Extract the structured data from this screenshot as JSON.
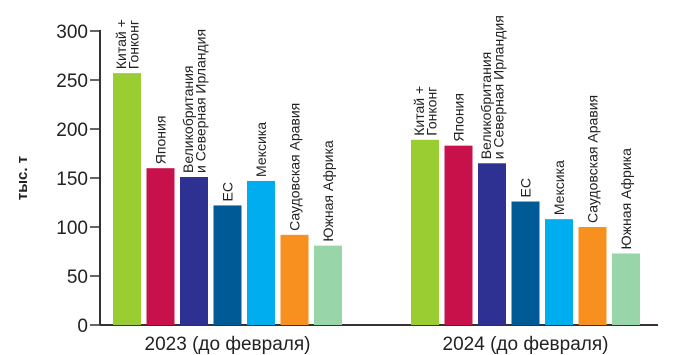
{
  "chart_data": {
    "type": "bar",
    "ylabel": "тыс. т",
    "ylim": [
      0,
      300
    ],
    "yticks": [
      0,
      50,
      100,
      150,
      200,
      250,
      300
    ],
    "grid": false,
    "categories": [
      "2023 (до февраля)",
      "2024 (до февраля)"
    ],
    "series": [
      {
        "name": "Китай + Гонконг",
        "label_lines": [
          "Китай +",
          "Гонконг"
        ],
        "color": "#9ACD32",
        "values": [
          257,
          189
        ]
      },
      {
        "name": "Япония",
        "label_lines": [
          "Япония"
        ],
        "color": "#C8104A",
        "values": [
          160,
          183
        ]
      },
      {
        "name": "Великобритания и Северная Ирландия",
        "label_lines": [
          "Великобритания",
          "и Северная Ирландия"
        ],
        "color": "#2E3192",
        "values": [
          151,
          165
        ]
      },
      {
        "name": "ЕС",
        "label_lines": [
          "ЕС"
        ],
        "color": "#005A96",
        "values": [
          122,
          126
        ]
      },
      {
        "name": "Мексика",
        "label_lines": [
          "Мексика"
        ],
        "color": "#00AEEF",
        "values": [
          147,
          108
        ]
      },
      {
        "name": "Саудовская Аравия",
        "label_lines": [
          "Саудовская Аравия"
        ],
        "color": "#F7901E",
        "values": [
          92,
          100
        ]
      },
      {
        "name": "Южная Африка",
        "label_lines": [
          "Южная Африка"
        ],
        "color": "#98D5A8",
        "values": [
          81,
          73
        ]
      }
    ]
  }
}
